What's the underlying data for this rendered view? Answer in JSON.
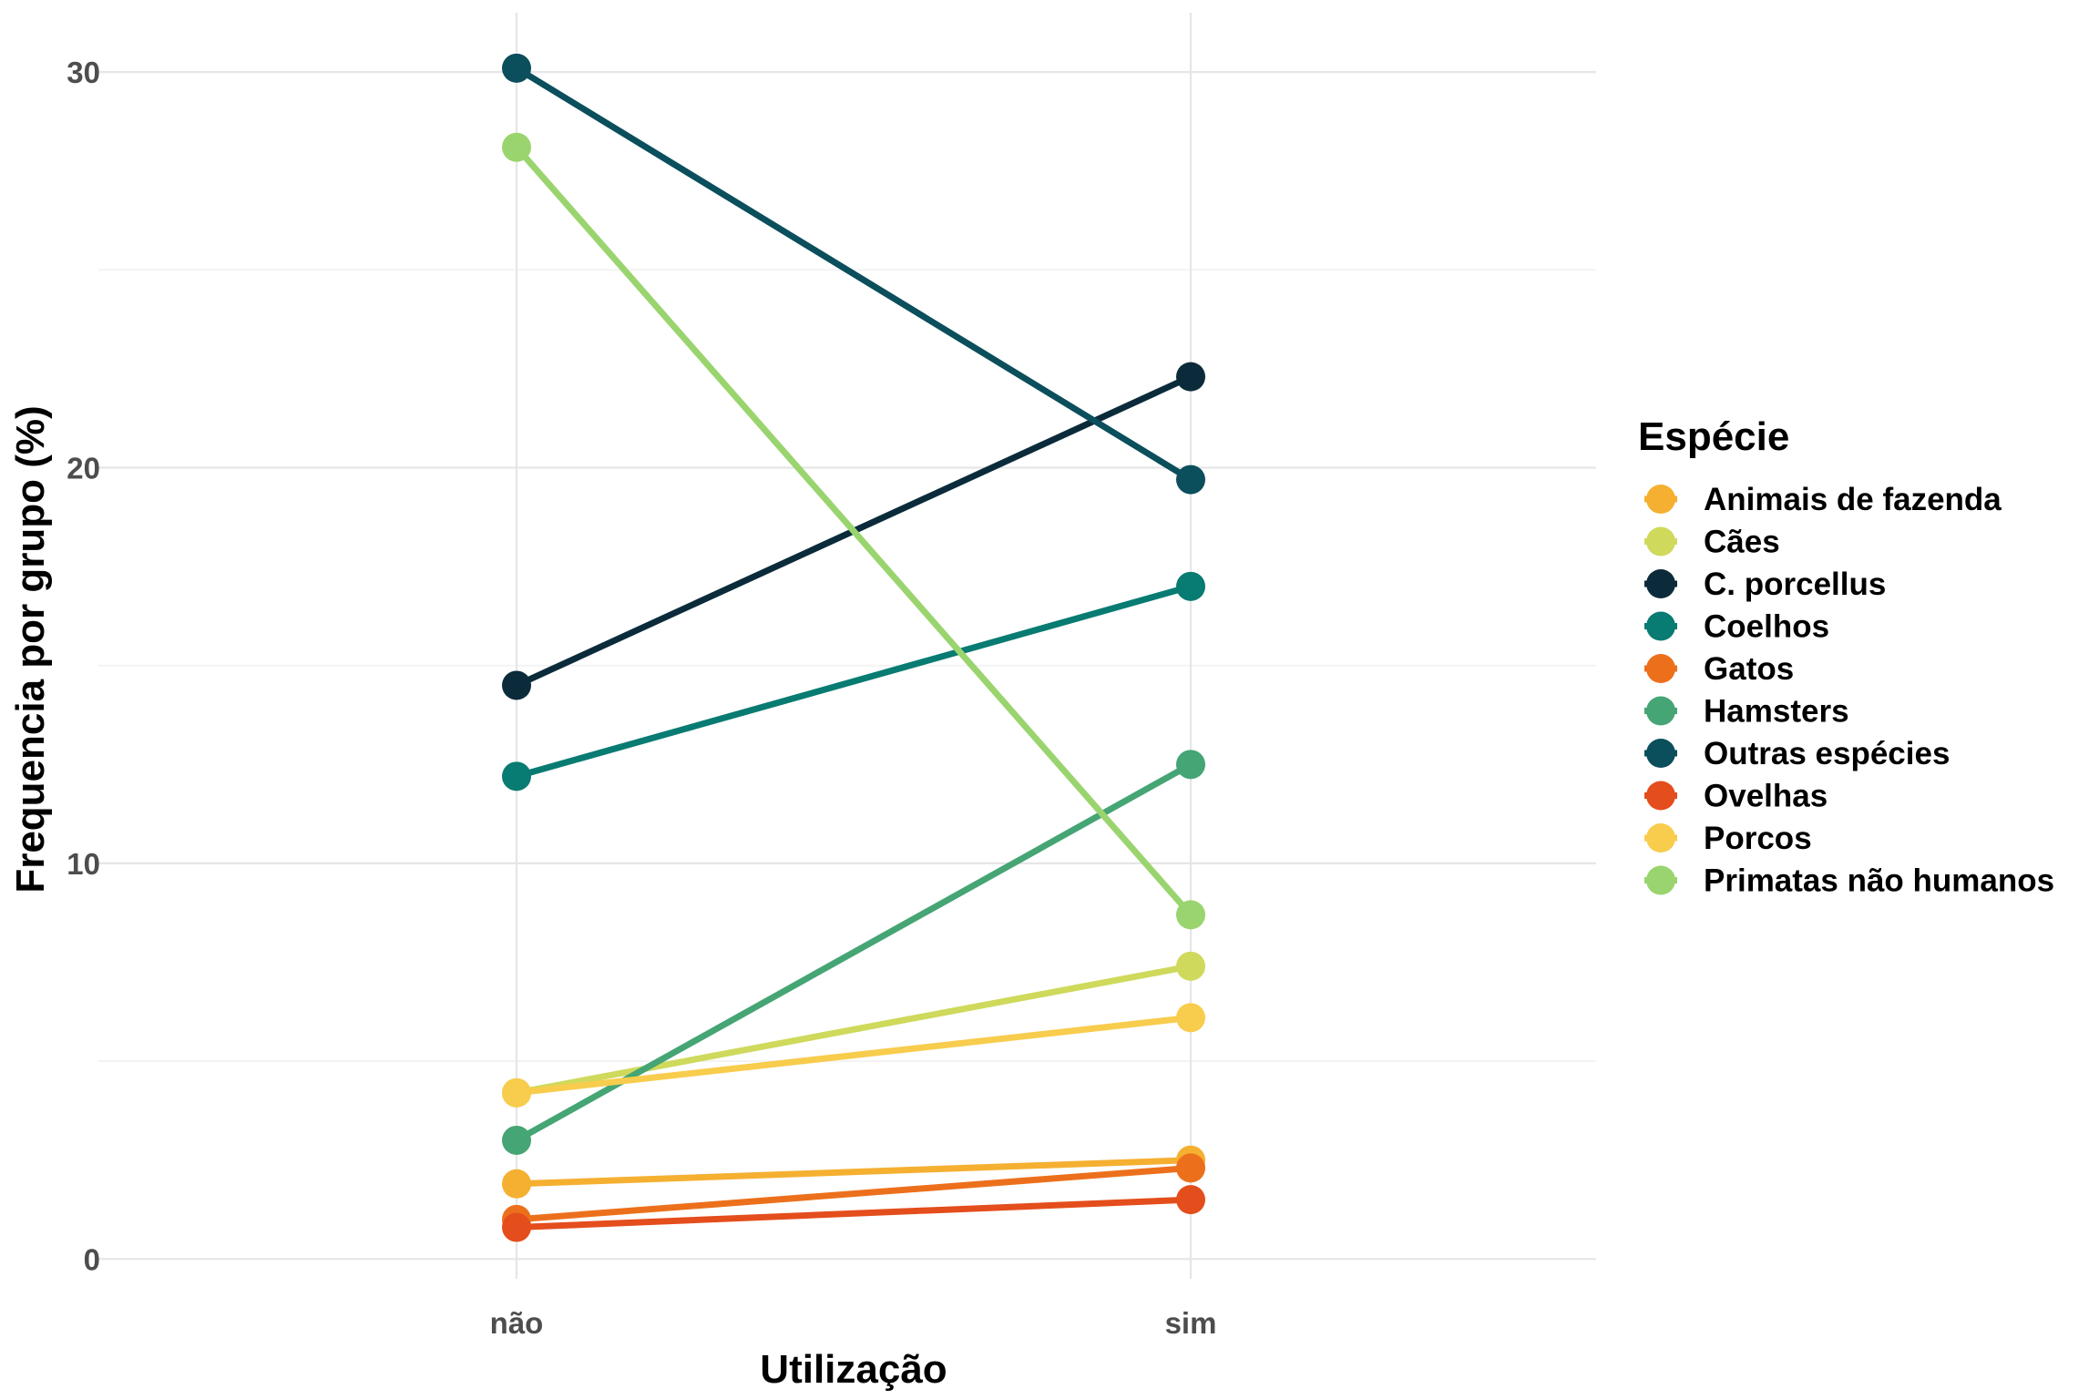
{
  "chart_data": {
    "type": "line",
    "title": "",
    "xlabel": "Utilização",
    "ylabel": "Frequencia por grupo (%)",
    "categories": [
      "não",
      "sim"
    ],
    "ylim": [
      -0.5,
      31.5
    ],
    "yticks": [
      "0",
      "10",
      "20",
      "30"
    ],
    "grid": true,
    "legend": {
      "title": "Espécie",
      "position": "right"
    },
    "series": [
      {
        "name": "Animais de fazenda",
        "color": "#f5b031",
        "values": [
          1.9,
          2.5
        ]
      },
      {
        "name": "Cães",
        "color": "#cfd95b",
        "values": [
          4.2,
          7.4
        ]
      },
      {
        "name": "C. porcellus",
        "color": "#0b2b3b",
        "values": [
          14.5,
          22.3
        ]
      },
      {
        "name": "Coelhos",
        "color": "#087b72",
        "values": [
          12.2,
          17.0
        ]
      },
      {
        "name": "Gatos",
        "color": "#ec701c",
        "values": [
          1.0,
          2.3
        ]
      },
      {
        "name": "Hamsters",
        "color": "#45a574",
        "values": [
          3.0,
          12.5
        ]
      },
      {
        "name": "Outras espécies",
        "color": "#0b4e5c",
        "values": [
          30.1,
          19.7
        ]
      },
      {
        "name": "Ovelhas",
        "color": "#e44d1c",
        "values": [
          0.8,
          1.5
        ]
      },
      {
        "name": "Porcos",
        "color": "#f8cc4c",
        "values": [
          4.2,
          6.1
        ]
      },
      {
        "name": "Primatas não humanos",
        "color": "#9ad46e",
        "values": [
          28.1,
          8.7
        ]
      }
    ]
  }
}
